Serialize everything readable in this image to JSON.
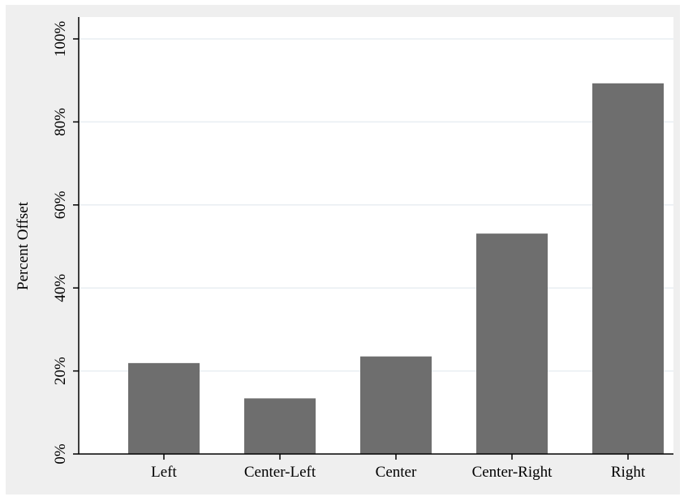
{
  "chart_data": {
    "type": "bar",
    "title": "",
    "xlabel": "",
    "ylabel": "Percent Offset",
    "categories": [
      "Left",
      "Center-Left",
      "Center",
      "Center-Right",
      "Right"
    ],
    "values": [
      0.219,
      0.134,
      0.235,
      0.531,
      0.893
    ],
    "ylim": [
      0,
      1
    ],
    "yticks": [
      {
        "value": 0,
        "label": "0%"
      },
      {
        "value": 0.2,
        "label": "20%"
      },
      {
        "value": 0.4,
        "label": "40%"
      },
      {
        "value": 0.6,
        "label": "60%"
      },
      {
        "value": 0.8,
        "label": "80%"
      },
      {
        "value": 1.0,
        "label": "100%"
      }
    ],
    "grid": true,
    "legend": "none",
    "colors": {
      "bar": "#6e6e6e",
      "outer_background": "#efefef",
      "plot_background": "#ffffff",
      "grid": "#e8eef2",
      "axis": "#000000"
    }
  }
}
